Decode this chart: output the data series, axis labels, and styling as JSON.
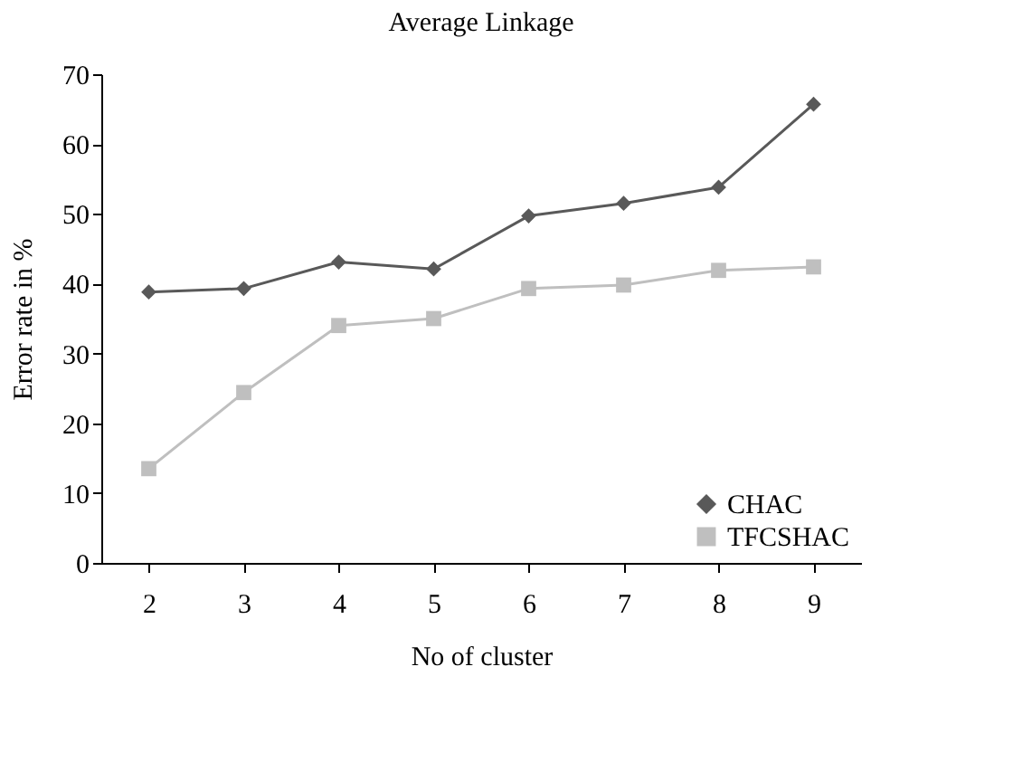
{
  "chart_data": {
    "type": "line",
    "title": "Average Linkage",
    "xlabel": "No of cluster",
    "ylabel": "Error rate in %",
    "categories": [
      "2",
      "3",
      "4",
      "5",
      "6",
      "7",
      "8",
      "9"
    ],
    "series": [
      {
        "name": "CHAC",
        "color": "#595959",
        "marker": "diamond",
        "values": [
          38.8,
          39.3,
          43.1,
          42.1,
          49.7,
          51.5,
          53.8,
          65.7
        ]
      },
      {
        "name": "TFCSHAC",
        "color": "#bfbfbf",
        "marker": "square",
        "values": [
          13.5,
          24.4,
          34.0,
          35.0,
          39.3,
          39.8,
          41.9,
          42.4
        ]
      }
    ],
    "ylim": [
      0,
      70
    ],
    "yticks": [
      0,
      10,
      20,
      30,
      40,
      50,
      60,
      70
    ],
    "grid": false,
    "legend": "bottom right",
    "line_style": "solid"
  }
}
